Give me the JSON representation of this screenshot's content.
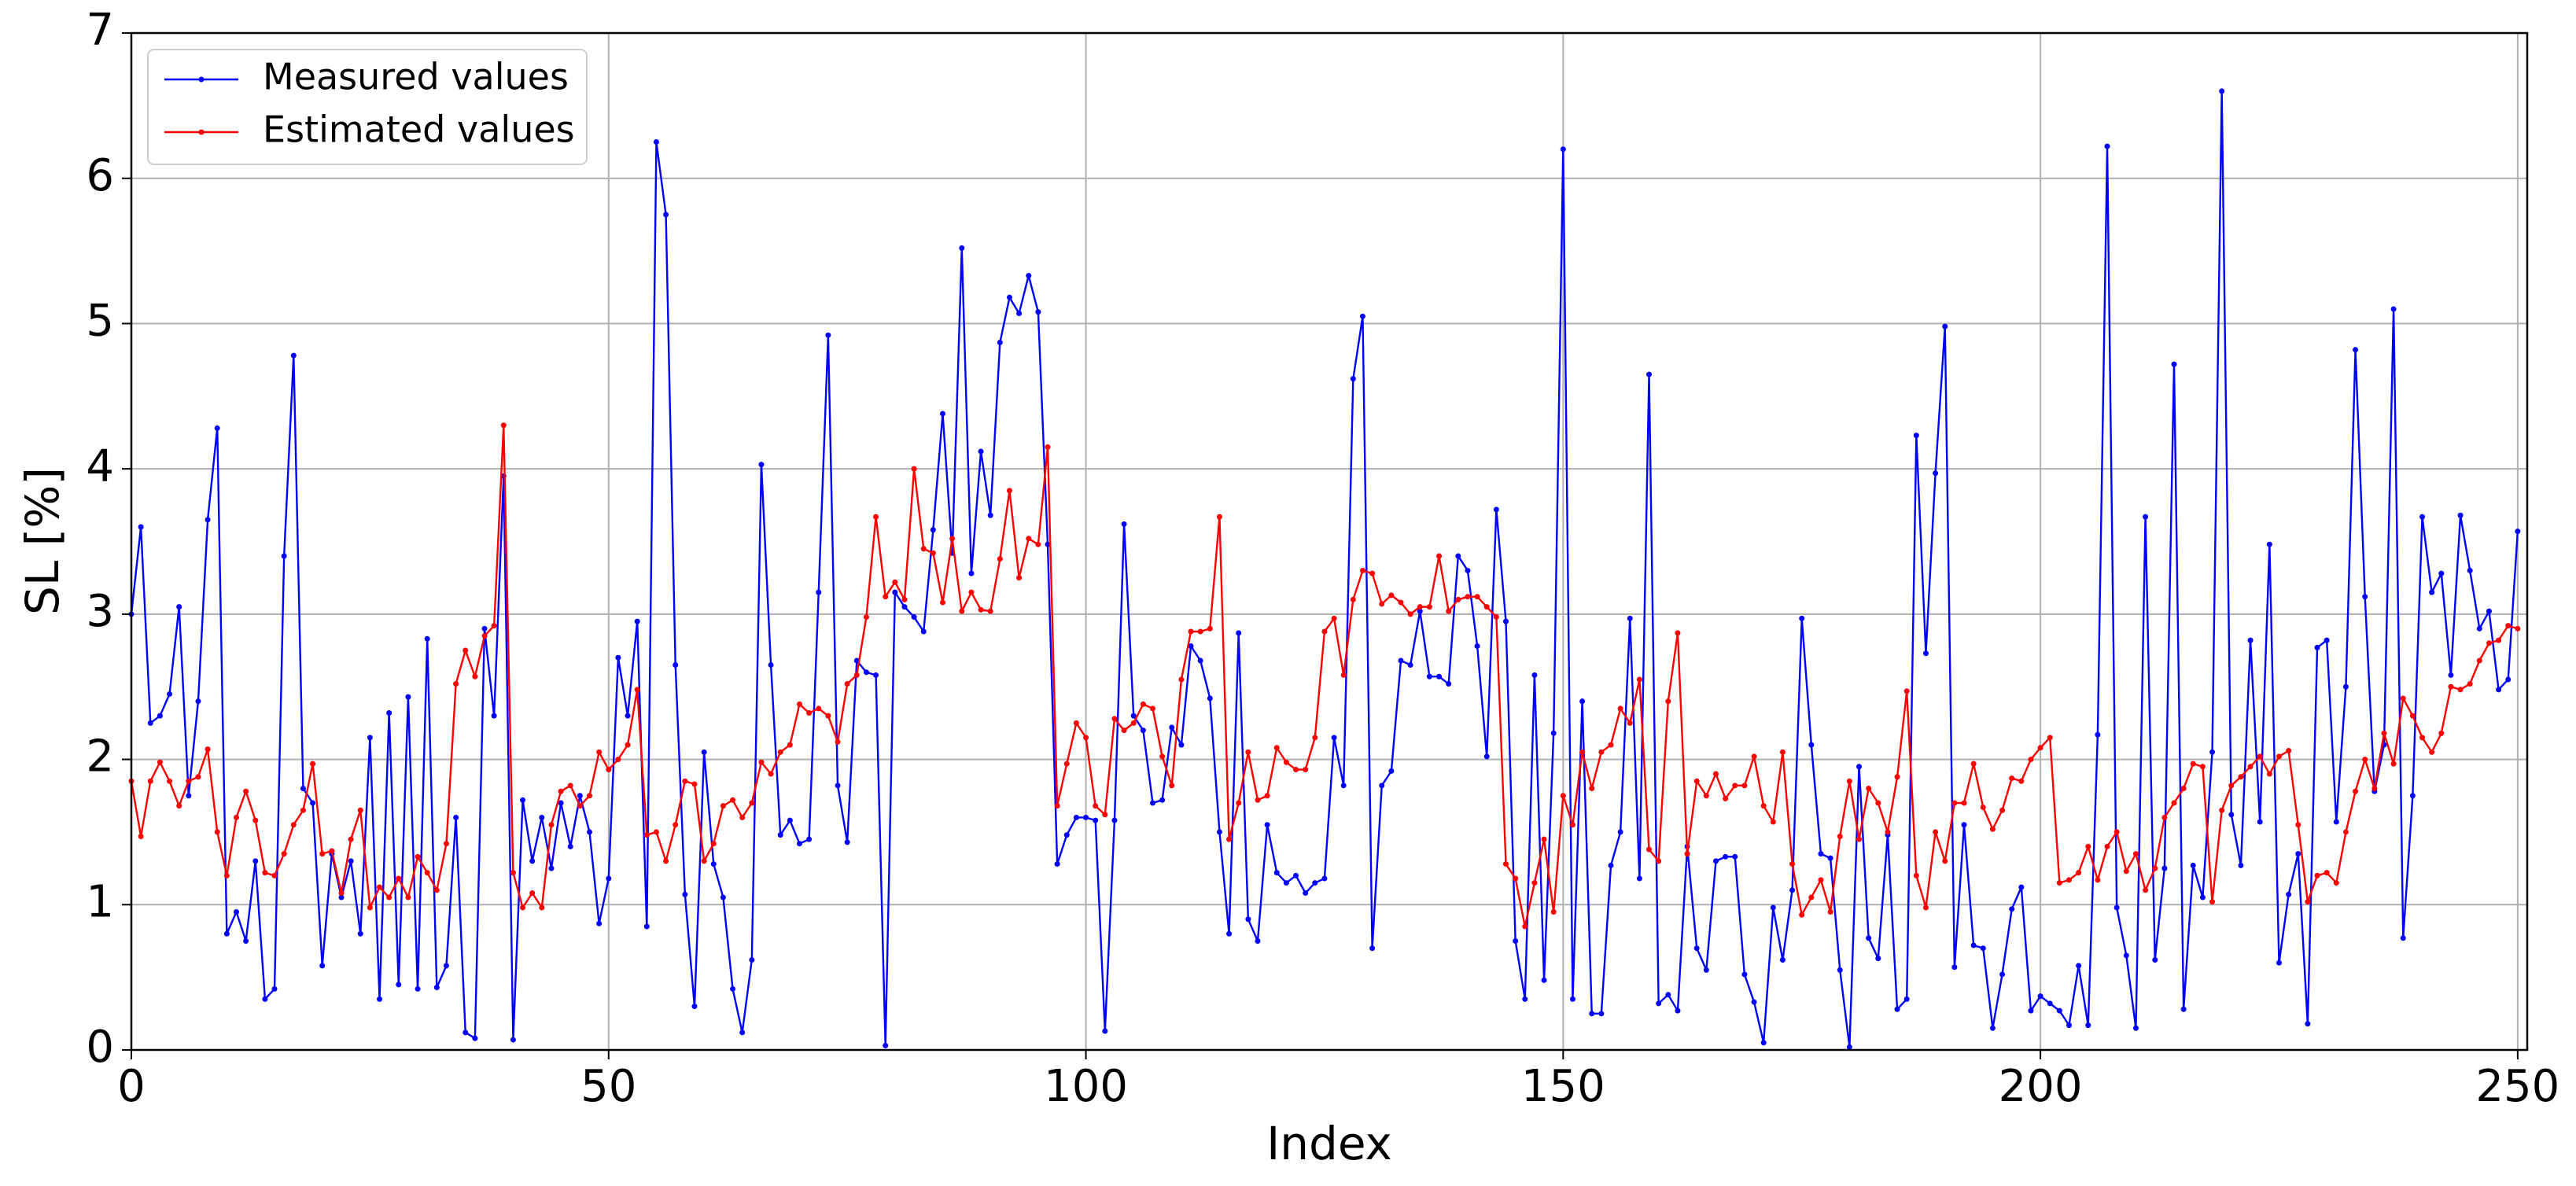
{
  "chart_data": {
    "type": "line",
    "xlabel": "Index",
    "ylabel": "SL [%]",
    "xlim": [
      0,
      251
    ],
    "ylim": [
      0,
      7
    ],
    "xticks": [
      0,
      50,
      100,
      150,
      200,
      250
    ],
    "yticks": [
      0,
      1,
      2,
      3,
      4,
      5,
      6,
      7
    ],
    "grid": true,
    "legend": "upper left",
    "series": [
      {
        "name": "Measured values",
        "color": "#0000ff",
        "values": [
          3.0,
          3.6,
          2.25,
          2.3,
          2.45,
          3.05,
          1.75,
          2.4,
          3.65,
          4.28,
          0.8,
          0.95,
          0.75,
          1.3,
          0.35,
          0.42,
          3.4,
          4.78,
          1.8,
          1.7,
          0.58,
          1.35,
          1.05,
          1.3,
          0.8,
          2.15,
          0.35,
          2.32,
          0.45,
          2.43,
          0.42,
          2.83,
          0.43,
          0.58,
          1.6,
          0.12,
          0.08,
          2.9,
          2.3,
          3.95,
          0.07,
          1.72,
          1.3,
          1.6,
          1.25,
          1.7,
          1.4,
          1.75,
          1.5,
          0.87,
          1.18,
          2.7,
          2.3,
          2.95,
          0.85,
          6.25,
          5.75,
          2.65,
          1.07,
          0.3,
          2.05,
          1.28,
          1.05,
          0.42,
          0.12,
          0.62,
          4.03,
          2.65,
          1.48,
          1.58,
          1.42,
          1.45,
          3.15,
          4.92,
          1.82,
          1.43,
          2.68,
          2.6,
          2.58,
          0.03,
          3.15,
          3.05,
          2.98,
          2.88,
          3.58,
          4.38,
          3.42,
          5.52,
          3.28,
          4.12,
          3.68,
          4.87,
          5.18,
          5.07,
          5.33,
          5.08,
          3.48,
          1.28,
          1.48,
          1.6,
          1.6,
          1.58,
          0.13,
          1.58,
          3.62,
          2.3,
          2.2,
          1.7,
          1.72,
          2.22,
          2.1,
          2.78,
          2.68,
          2.42,
          1.5,
          0.8,
          2.87,
          0.9,
          0.75,
          1.55,
          1.22,
          1.15,
          1.2,
          1.08,
          1.15,
          1.18,
          2.15,
          1.82,
          4.62,
          5.05,
          0.7,
          1.82,
          1.92,
          2.68,
          2.65,
          3.02,
          2.57,
          2.57,
          2.52,
          3.4,
          3.3,
          2.78,
          2.02,
          3.72,
          2.95,
          0.75,
          0.35,
          2.58,
          0.48,
          2.18,
          6.2,
          0.35,
          2.4,
          0.25,
          0.25,
          1.27,
          1.5,
          2.97,
          1.18,
          4.65,
          0.32,
          0.38,
          0.27,
          1.4,
          0.7,
          0.55,
          1.3,
          1.33,
          1.33,
          0.52,
          0.33,
          0.05,
          0.98,
          0.62,
          1.1,
          2.97,
          2.1,
          1.35,
          1.32,
          0.55,
          0.02,
          1.95,
          0.77,
          0.63,
          1.48,
          0.28,
          0.35,
          4.23,
          2.73,
          3.97,
          4.98,
          0.57,
          1.55,
          0.72,
          0.7,
          0.15,
          0.52,
          0.97,
          1.12,
          0.27,
          0.37,
          0.32,
          0.27,
          0.17,
          0.58,
          0.17,
          2.17,
          6.22,
          0.98,
          0.65,
          0.15,
          3.67,
          0.62,
          1.25,
          4.72,
          0.28,
          1.27,
          1.05,
          2.05,
          6.6,
          1.62,
          1.27,
          2.82,
          1.57,
          3.48,
          0.6,
          1.07,
          1.35,
          0.18,
          2.77,
          2.82,
          1.57,
          2.5,
          4.82,
          3.12,
          1.78,
          2.1,
          5.1,
          0.77,
          1.75,
          3.67,
          3.15,
          3.28,
          2.58,
          3.68,
          3.3,
          2.9,
          3.02,
          2.48,
          2.55,
          3.57
        ]
      },
      {
        "name": "Estimated values",
        "color": "#ff0000",
        "values": [
          1.85,
          1.47,
          1.85,
          1.98,
          1.85,
          1.68,
          1.85,
          1.88,
          2.07,
          1.5,
          1.2,
          1.6,
          1.78,
          1.58,
          1.22,
          1.2,
          1.35,
          1.55,
          1.65,
          1.97,
          1.35,
          1.37,
          1.08,
          1.45,
          1.65,
          0.98,
          1.12,
          1.05,
          1.18,
          1.05,
          1.33,
          1.22,
          1.1,
          1.42,
          2.52,
          2.75,
          2.57,
          2.85,
          2.92,
          4.3,
          1.22,
          0.98,
          1.08,
          0.98,
          1.55,
          1.78,
          1.82,
          1.68,
          1.75,
          2.05,
          1.93,
          2.0,
          2.1,
          2.48,
          1.48,
          1.5,
          1.3,
          1.55,
          1.85,
          1.83,
          1.3,
          1.42,
          1.68,
          1.72,
          1.6,
          1.7,
          1.98,
          1.9,
          2.05,
          2.1,
          2.38,
          2.32,
          2.35,
          2.3,
          2.12,
          2.52,
          2.58,
          2.98,
          3.67,
          3.12,
          3.22,
          3.1,
          4.0,
          3.45,
          3.42,
          3.08,
          3.52,
          3.02,
          3.15,
          3.03,
          3.02,
          3.38,
          3.85,
          3.25,
          3.52,
          3.48,
          4.15,
          1.68,
          1.97,
          2.25,
          2.15,
          1.68,
          1.62,
          2.28,
          2.2,
          2.25,
          2.38,
          2.35,
          2.02,
          1.82,
          2.55,
          2.88,
          2.88,
          2.9,
          3.67,
          1.45,
          1.7,
          2.05,
          1.72,
          1.75,
          2.08,
          1.98,
          1.93,
          1.93,
          2.15,
          2.88,
          2.97,
          2.58,
          3.1,
          3.3,
          3.28,
          3.07,
          3.13,
          3.08,
          3.0,
          3.05,
          3.05,
          3.4,
          3.02,
          3.1,
          3.12,
          3.12,
          3.05,
          2.98,
          1.28,
          1.18,
          0.85,
          1.15,
          1.45,
          0.95,
          1.75,
          1.55,
          2.05,
          1.8,
          2.05,
          2.1,
          2.35,
          2.25,
          2.55,
          1.38,
          1.3,
          2.4,
          2.87,
          1.35,
          1.85,
          1.75,
          1.9,
          1.73,
          1.82,
          1.82,
          2.02,
          1.68,
          1.57,
          2.05,
          1.28,
          0.93,
          1.05,
          1.17,
          0.95,
          1.47,
          1.85,
          1.45,
          1.8,
          1.7,
          1.5,
          1.88,
          2.47,
          1.2,
          0.98,
          1.5,
          1.3,
          1.7,
          1.7,
          1.97,
          1.67,
          1.52,
          1.65,
          1.87,
          1.85,
          2.0,
          2.08,
          2.15,
          1.15,
          1.17,
          1.22,
          1.4,
          1.17,
          1.4,
          1.5,
          1.23,
          1.35,
          1.1,
          1.25,
          1.6,
          1.7,
          1.8,
          1.97,
          1.95,
          1.02,
          1.65,
          1.82,
          1.88,
          1.95,
          2.02,
          1.9,
          2.02,
          2.06,
          1.55,
          1.02,
          1.2,
          1.22,
          1.15,
          1.5,
          1.78,
          2.0,
          1.8,
          2.18,
          1.97,
          2.42,
          2.3,
          2.15,
          2.05,
          2.18,
          2.5,
          2.48,
          2.52,
          2.68,
          2.8,
          2.82,
          2.92,
          2.9
        ]
      }
    ]
  }
}
